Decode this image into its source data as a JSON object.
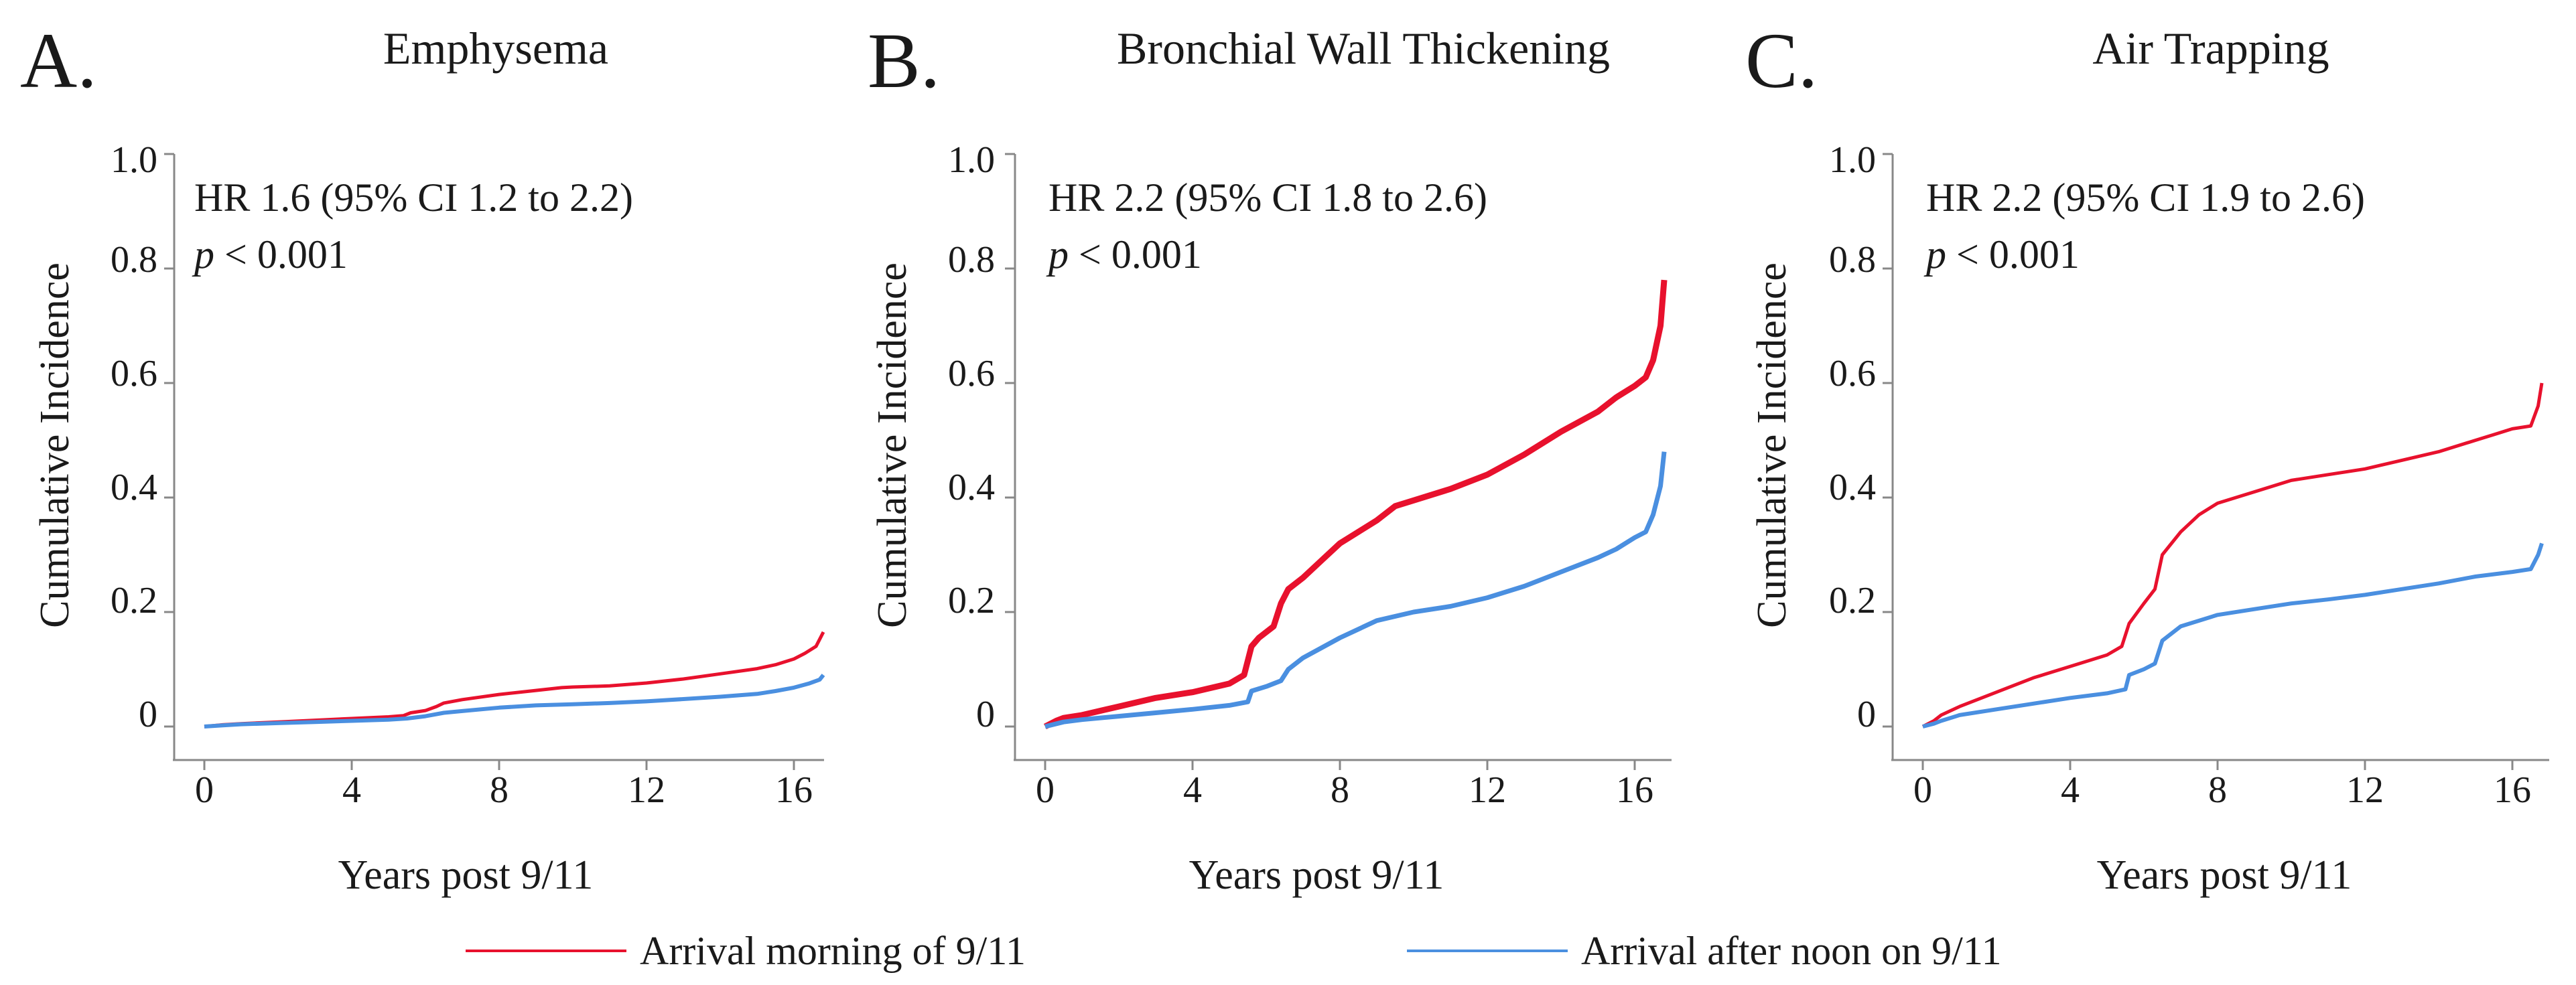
{
  "colors": {
    "morning": "#e8112d",
    "afternoon": "#4a8fe0",
    "axis": "#888888"
  },
  "legend": {
    "morning_label": "Arrival morning of 9/11",
    "afternoon_label": "Arrival after noon on 9/11"
  },
  "chart_data": [
    {
      "type": "line",
      "panel_letter": "A.",
      "title": "Emphysema",
      "xlabel": "Years post 9/11",
      "ylabel": "Cumulative Incidence",
      "xlim": [
        -0.8,
        17
      ],
      "ylim": [
        -0.06,
        1.0
      ],
      "xticks": [
        0,
        4,
        8,
        12,
        16
      ],
      "yticks": [
        0,
        0.2,
        0.4,
        0.6,
        0.8,
        1.0
      ],
      "ytick_labels": [
        "0",
        "0.2",
        "0.4",
        "0.6",
        "0.8",
        "1.0"
      ],
      "hr_text": "HR 1.6  (95% CI 1.2 to 2.2)",
      "p_symbol": "p",
      "p_text": " < 0.001",
      "series": [
        {
          "name": "Arrival morning of 9/11",
          "key": "morning",
          "x": [
            0,
            0.5,
            1,
            2,
            3,
            4,
            5,
            5.4,
            5.6,
            6.0,
            6.3,
            6.5,
            7,
            8,
            9,
            9.7,
            10,
            11,
            12,
            13,
            14,
            15,
            15.5,
            16,
            16.3,
            16.6,
            16.8
          ],
          "y": [
            0,
            0.003,
            0.005,
            0.008,
            0.011,
            0.014,
            0.017,
            0.019,
            0.024,
            0.028,
            0.035,
            0.041,
            0.047,
            0.056,
            0.063,
            0.068,
            0.069,
            0.071,
            0.076,
            0.083,
            0.092,
            0.101,
            0.108,
            0.118,
            0.128,
            0.14,
            0.165
          ]
        },
        {
          "name": "Arrival after noon on 9/11",
          "key": "afternoon",
          "x": [
            0,
            0.5,
            1,
            2,
            3,
            4,
            5,
            5.5,
            6,
            6.5,
            7,
            8,
            9,
            10,
            11,
            12,
            13,
            14,
            15,
            15.5,
            16,
            16.4,
            16.7,
            16.8
          ],
          "y": [
            0,
            0.002,
            0.004,
            0.006,
            0.008,
            0.01,
            0.012,
            0.014,
            0.018,
            0.024,
            0.027,
            0.033,
            0.037,
            0.039,
            0.041,
            0.044,
            0.048,
            0.052,
            0.057,
            0.062,
            0.068,
            0.075,
            0.082,
            0.09
          ]
        }
      ]
    },
    {
      "type": "line",
      "panel_letter": "B.",
      "title": "Bronchial Wall Thickening",
      "xlabel": "Years post 9/11",
      "ylabel": "Cumulative Incidence",
      "xlim": [
        -0.8,
        17
      ],
      "ylim": [
        -0.06,
        1.0
      ],
      "xticks": [
        0,
        4,
        8,
        12,
        16
      ],
      "yticks": [
        0,
        0.2,
        0.4,
        0.6,
        0.8,
        1.0
      ],
      "ytick_labels": [
        "0",
        "0.2",
        "0.4",
        "0.6",
        "0.8",
        "1.0"
      ],
      "hr_text": "HR 2.2  (95% CI 1.8 to 2.6)",
      "p_symbol": "p",
      "p_text": " < 0.001",
      "series": [
        {
          "name": "Arrival morning of 9/11",
          "key": "morning",
          "x": [
            0,
            0.3,
            0.5,
            1,
            2,
            3,
            4,
            5,
            5.4,
            5.6,
            5.8,
            6.2,
            6.4,
            6.6,
            7,
            7.5,
            8,
            8.5,
            9,
            9.5,
            10,
            11,
            12,
            13,
            14,
            15,
            15.5,
            16,
            16.3,
            16.5,
            16.7,
            16.8
          ],
          "y": [
            0,
            0.01,
            0.015,
            0.02,
            0.035,
            0.05,
            0.06,
            0.075,
            0.09,
            0.14,
            0.155,
            0.175,
            0.215,
            0.24,
            0.26,
            0.29,
            0.32,
            0.34,
            0.36,
            0.385,
            0.395,
            0.415,
            0.44,
            0.475,
            0.515,
            0.55,
            0.575,
            0.595,
            0.61,
            0.64,
            0.7,
            0.78
          ]
        },
        {
          "name": "Arrival after noon on 9/11",
          "key": "afternoon",
          "x": [
            0,
            0.5,
            1,
            2,
            3,
            4,
            5,
            5.5,
            5.6,
            6,
            6.4,
            6.6,
            7,
            8,
            9,
            10,
            11,
            12,
            13,
            14,
            15,
            15.5,
            16,
            16.3,
            16.5,
            16.7,
            16.8
          ],
          "y": [
            0,
            0.008,
            0.012,
            0.018,
            0.024,
            0.03,
            0.037,
            0.043,
            0.062,
            0.07,
            0.08,
            0.1,
            0.12,
            0.155,
            0.185,
            0.2,
            0.21,
            0.225,
            0.245,
            0.27,
            0.295,
            0.31,
            0.33,
            0.34,
            0.37,
            0.42,
            0.48
          ]
        }
      ]
    },
    {
      "type": "line",
      "panel_letter": "C.",
      "title": "Air Trapping",
      "xlabel": "Years post 9/11",
      "ylabel": "Cumulative Incidence",
      "xlim": [
        -0.8,
        17
      ],
      "ylim": [
        -0.06,
        1.0
      ],
      "xticks": [
        0,
        4,
        8,
        12,
        16
      ],
      "yticks": [
        0,
        0.2,
        0.4,
        0.6,
        0.8,
        1.0
      ],
      "ytick_labels": [
        "0",
        "0.2",
        "0.4",
        "0.6",
        "0.8",
        "1.0"
      ],
      "hr_text": "HR 2.2  (95% CI 1.9 to 2.6)",
      "p_symbol": "p",
      "p_text": " < 0.001",
      "series": [
        {
          "name": "Arrival morning of 9/11",
          "key": "morning",
          "x": [
            0,
            0.3,
            0.5,
            1,
            2,
            3,
            4,
            5,
            5.4,
            5.6,
            6,
            6.3,
            6.5,
            7,
            7.5,
            8,
            9,
            10,
            11,
            12,
            13,
            14,
            15,
            15.5,
            16,
            16.5,
            16.7,
            16.8
          ],
          "y": [
            0,
            0.01,
            0.02,
            0.035,
            0.06,
            0.085,
            0.105,
            0.125,
            0.14,
            0.18,
            0.215,
            0.24,
            0.3,
            0.34,
            0.37,
            0.39,
            0.41,
            0.43,
            0.44,
            0.45,
            0.465,
            0.48,
            0.5,
            0.51,
            0.52,
            0.525,
            0.56,
            0.6
          ]
        },
        {
          "name": "Arrival after noon on 9/11",
          "key": "afternoon",
          "x": [
            0,
            0.3,
            0.5,
            1,
            2,
            3,
            4,
            5,
            5.5,
            5.6,
            6,
            6.3,
            6.5,
            7,
            8,
            9,
            10,
            11,
            12,
            13,
            14,
            15,
            16,
            16.5,
            16.7,
            16.8
          ],
          "y": [
            0,
            0.005,
            0.01,
            0.02,
            0.03,
            0.04,
            0.05,
            0.058,
            0.065,
            0.09,
            0.1,
            0.11,
            0.15,
            0.175,
            0.195,
            0.205,
            0.215,
            0.222,
            0.23,
            0.24,
            0.25,
            0.262,
            0.27,
            0.275,
            0.3,
            0.32
          ]
        }
      ]
    }
  ]
}
